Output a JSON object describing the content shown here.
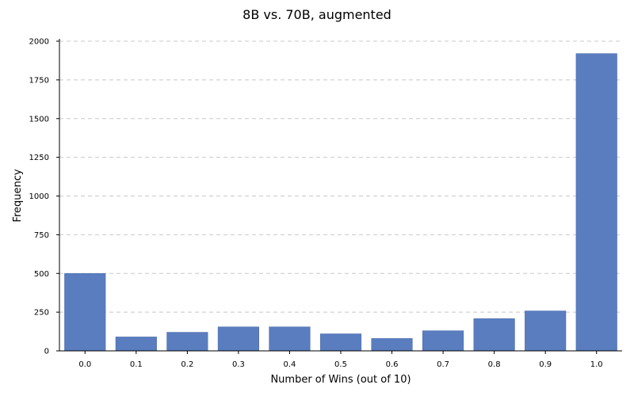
{
  "chart_data": {
    "type": "bar",
    "title": "8B vs. 70B, augmented",
    "xlabel": "Number of Wins (out of 10)",
    "ylabel": "Frequency",
    "categories": [
      "0.0",
      "0.1",
      "0.2",
      "0.3",
      "0.4",
      "0.5",
      "0.6",
      "0.7",
      "0.8",
      "0.9",
      "1.0"
    ],
    "values": [
      500,
      90,
      120,
      155,
      155,
      110,
      80,
      130,
      208,
      258,
      1920
    ],
    "ylim": [
      0,
      2000
    ],
    "yticks": [
      0,
      250,
      500,
      750,
      1000,
      1250,
      1500,
      1750,
      2000
    ],
    "grid": true,
    "grid_axis": "y",
    "bar_color": "#5a7dc0",
    "legend": "none"
  }
}
